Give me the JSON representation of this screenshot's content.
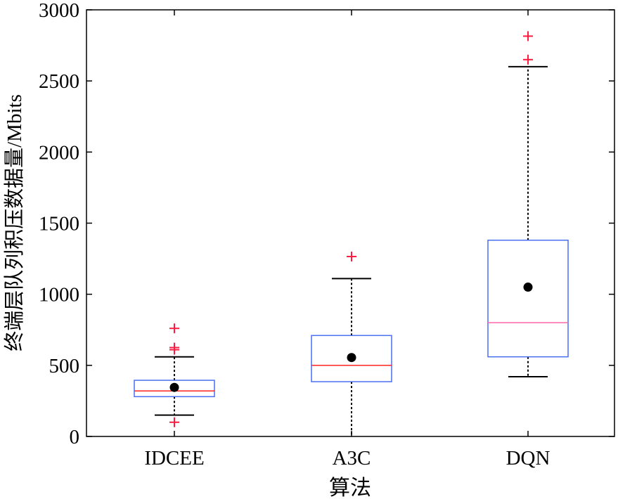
{
  "chart_data": {
    "type": "box",
    "title": "",
    "xlabel": "算法",
    "ylabel": "终端层队列积压数据量/Mbits",
    "ylim": [
      0,
      3000
    ],
    "yticks": [
      "0",
      "500",
      "1000",
      "1500",
      "2000",
      "2500",
      "3000"
    ],
    "categories": [
      "IDCEE",
      "A3C",
      "DQN"
    ],
    "boxes": [
      {
        "name": "IDCEE",
        "whisker_low": 150,
        "q1": 280,
        "median": 320,
        "q3": 395,
        "whisker_high": 560,
        "mean": 345,
        "outliers": [
          100,
          610,
          625,
          760
        ]
      },
      {
        "name": "A3C",
        "whisker_low": 0,
        "q1": 385,
        "median": 500,
        "q3": 710,
        "whisker_high": 1110,
        "mean": 555,
        "outliers": [
          1265
        ]
      },
      {
        "name": "DQN",
        "whisker_low": 420,
        "q1": 560,
        "median": 800,
        "q3": 1380,
        "whisker_high": 2600,
        "mean": 1050,
        "outliers": [
          2650,
          2815
        ]
      }
    ]
  },
  "colors": {
    "box": "#4a6ff0",
    "median_idcee": "#ff2020",
    "median_a3c": "#ff2020",
    "median_dqn": "#ff66aa",
    "outlier": "#ff1a40",
    "whisker": "#000000",
    "mean": "#000000"
  }
}
